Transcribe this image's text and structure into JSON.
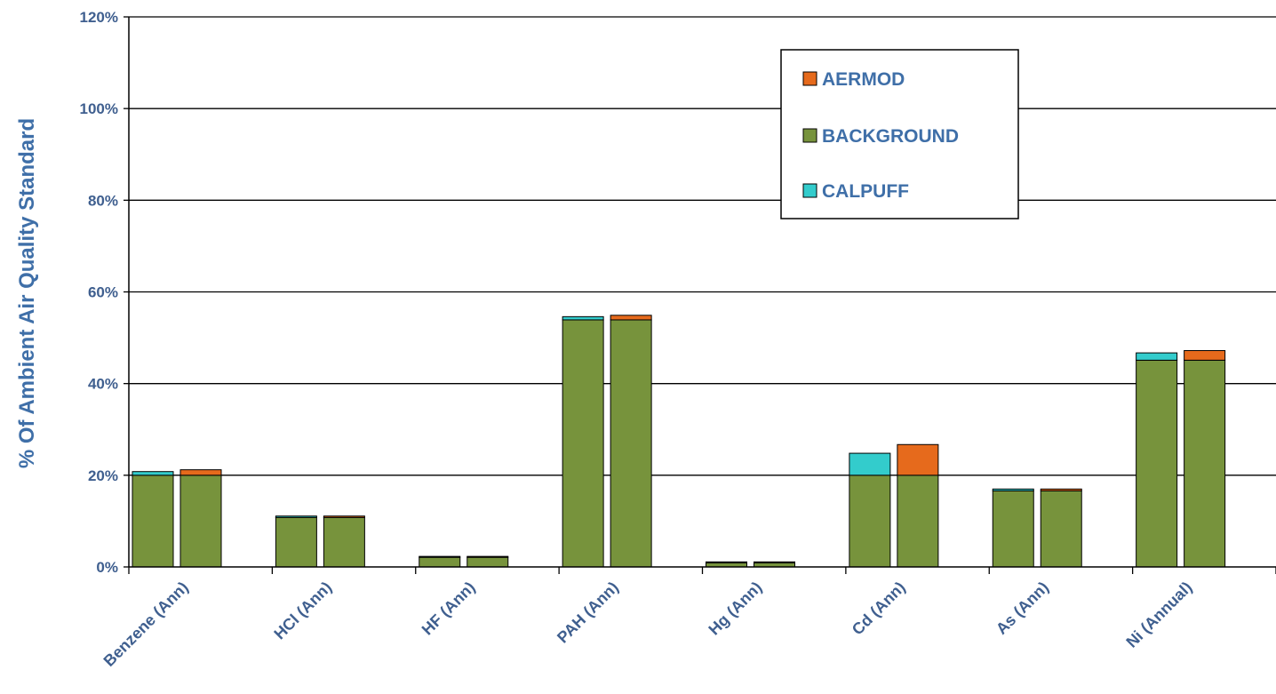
{
  "chart_data": {
    "type": "bar",
    "stacked": true,
    "title": "",
    "xlabel": "",
    "ylabel": "% Of Ambient Air Quality Standard",
    "ylim": [
      0,
      120
    ],
    "yticks": [
      "0%",
      "20%",
      "40%",
      "60%",
      "80%",
      "100%",
      "120%"
    ],
    "grid": true,
    "legend_position": "top-right",
    "categories": [
      "Benzene (Ann)",
      "HCl (Ann)",
      "HF (Ann)",
      "PAH (Ann)",
      "Hg (Ann)",
      "Cd (Ann)",
      "As (Ann)",
      "Ni (Annual)"
    ],
    "bars_per_category": [
      {
        "model": "CALPUFF",
        "background": 20,
        "contribution": 0.8
      },
      {
        "model": "AERMOD",
        "background": 20,
        "contribution": 1.2
      },
      {
        "model": "CALPUFF",
        "background": 10.8,
        "contribution": 0.3
      },
      {
        "model": "AERMOD",
        "background": 10.8,
        "contribution": 0.3
      },
      {
        "model": "CALPUFF",
        "background": 2.1,
        "contribution": 0.2
      },
      {
        "model": "AERMOD",
        "background": 2.1,
        "contribution": 0.2
      },
      {
        "model": "CALPUFF",
        "background": 53.9,
        "contribution": 0.7
      },
      {
        "model": "AERMOD",
        "background": 53.9,
        "contribution": 1.0
      },
      {
        "model": "CALPUFF",
        "background": 0.9,
        "contribution": 0.2
      },
      {
        "model": "AERMOD",
        "background": 0.9,
        "contribution": 0.2
      },
      {
        "model": "CALPUFF",
        "background": 20,
        "contribution": 4.8
      },
      {
        "model": "AERMOD",
        "background": 20,
        "contribution": 6.7
      },
      {
        "model": "CALPUFF",
        "background": 16.6,
        "contribution": 0.4
      },
      {
        "model": "AERMOD",
        "background": 16.6,
        "contribution": 0.4
      },
      {
        "model": "CALPUFF",
        "background": 45.1,
        "contribution": 1.6
      },
      {
        "model": "AERMOD",
        "background": 45.1,
        "contribution": 2.1
      }
    ],
    "legend": [
      "AERMOD",
      "BACKGROUND",
      "CALPUFF"
    ],
    "colors": {
      "AERMOD": "#e66a1c",
      "BACKGROUND": "#77933c",
      "CALPUFF": "#33cccc",
      "text": "#3f6fa8"
    }
  }
}
